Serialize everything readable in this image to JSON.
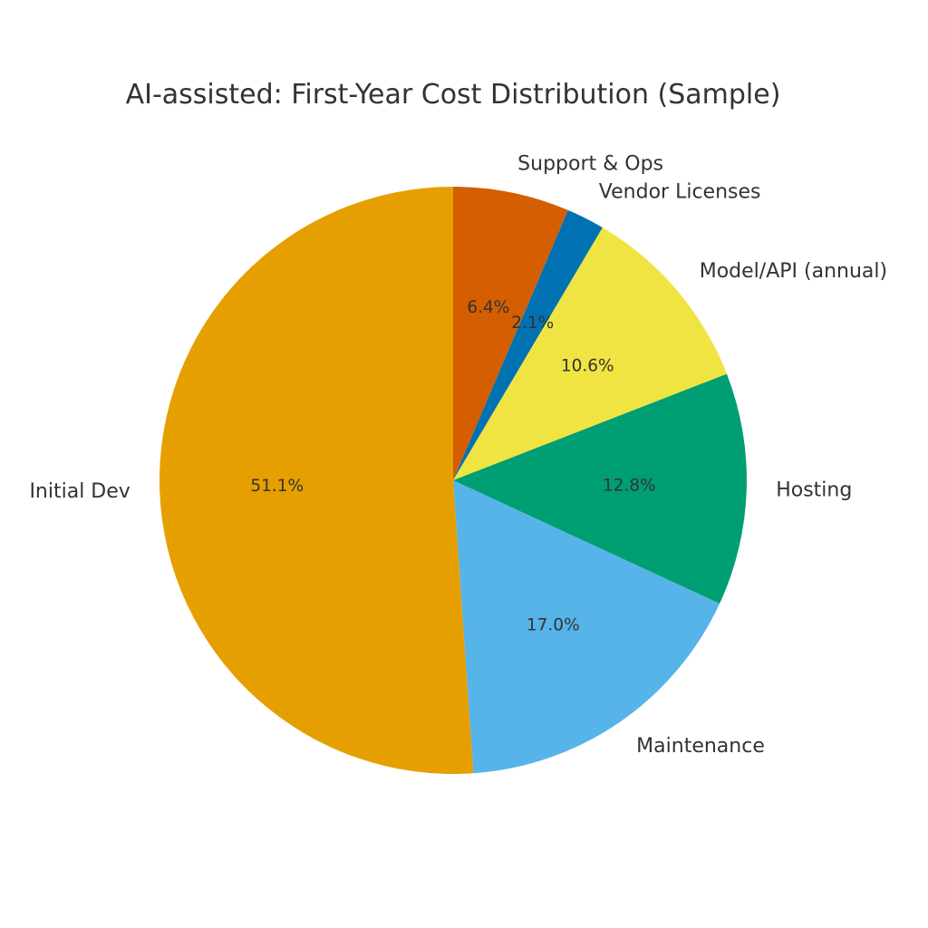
{
  "chart_data": {
    "type": "pie",
    "title": "AI-assisted: First-Year Cost Distribution (Sample)",
    "start_angle_deg": 90,
    "direction": "clockwise",
    "slices": [
      {
        "label": "Support & Ops",
        "value": 6.4,
        "pct_label": "6.4%",
        "color": "#D55E00"
      },
      {
        "label": "Vendor Licenses",
        "value": 2.1,
        "pct_label": "2.1%",
        "color": "#0072B2"
      },
      {
        "label": "Model/API (annual)",
        "value": 10.6,
        "pct_label": "10.6%",
        "color": "#F0E442"
      },
      {
        "label": "Hosting",
        "value": 12.8,
        "pct_label": "12.8%",
        "color": "#009E73"
      },
      {
        "label": "Maintenance",
        "value": 17.0,
        "pct_label": "17.0%",
        "color": "#56B4E9"
      },
      {
        "label": "Initial Dev",
        "value": 51.1,
        "pct_label": "51.1%",
        "color": "#E69F00"
      }
    ]
  }
}
